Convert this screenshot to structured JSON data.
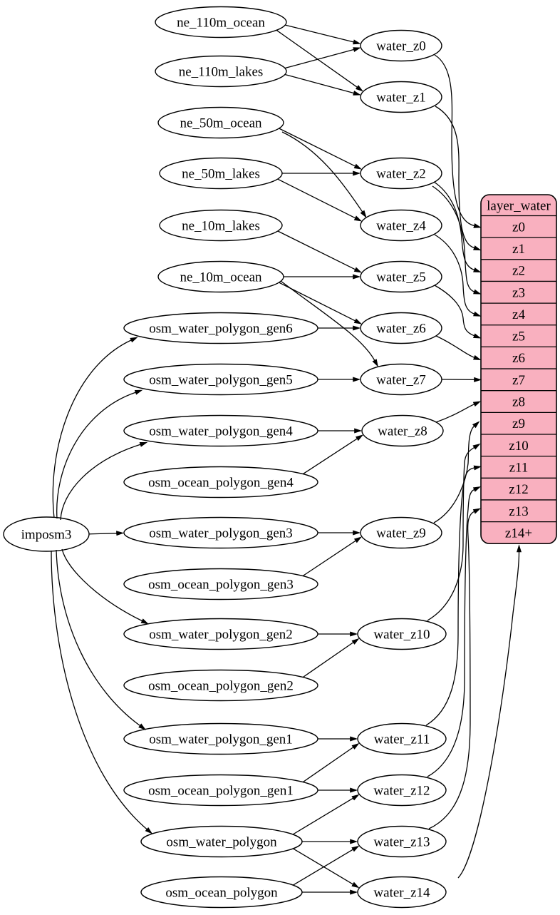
{
  "colors": {
    "background": "#ffffff",
    "node_fill": "#ffffff",
    "stroke": "#000000",
    "record_fill": "#f9b0bf",
    "text": "#000000"
  },
  "nodes": [
    {
      "id": "imposm3",
      "label": "imposm3"
    },
    {
      "id": "ne_110m_ocean",
      "label": "ne_110m_ocean"
    },
    {
      "id": "ne_110m_lakes",
      "label": "ne_110m_lakes"
    },
    {
      "id": "ne_50m_ocean",
      "label": "ne_50m_ocean"
    },
    {
      "id": "ne_50m_lakes",
      "label": "ne_50m_lakes"
    },
    {
      "id": "ne_10m_lakes",
      "label": "ne_10m_lakes"
    },
    {
      "id": "ne_10m_ocean",
      "label": "ne_10m_ocean"
    },
    {
      "id": "osm_water_polygon_gen6",
      "label": "osm_water_polygon_gen6"
    },
    {
      "id": "osm_water_polygon_gen5",
      "label": "osm_water_polygon_gen5"
    },
    {
      "id": "osm_water_polygon_gen4",
      "label": "osm_water_polygon_gen4"
    },
    {
      "id": "osm_ocean_polygon_gen4",
      "label": "osm_ocean_polygon_gen4"
    },
    {
      "id": "osm_water_polygon_gen3",
      "label": "osm_water_polygon_gen3"
    },
    {
      "id": "osm_ocean_polygon_gen3",
      "label": "osm_ocean_polygon_gen3"
    },
    {
      "id": "osm_water_polygon_gen2",
      "label": "osm_water_polygon_gen2"
    },
    {
      "id": "osm_ocean_polygon_gen2",
      "label": "osm_ocean_polygon_gen2"
    },
    {
      "id": "osm_water_polygon_gen1",
      "label": "osm_water_polygon_gen1"
    },
    {
      "id": "osm_ocean_polygon_gen1",
      "label": "osm_ocean_polygon_gen1"
    },
    {
      "id": "osm_water_polygon",
      "label": "osm_water_polygon"
    },
    {
      "id": "osm_ocean_polygon",
      "label": "osm_ocean_polygon"
    },
    {
      "id": "water_z0",
      "label": "water_z0"
    },
    {
      "id": "water_z1",
      "label": "water_z1"
    },
    {
      "id": "water_z2",
      "label": "water_z2"
    },
    {
      "id": "water_z4",
      "label": "water_z4"
    },
    {
      "id": "water_z5",
      "label": "water_z5"
    },
    {
      "id": "water_z6",
      "label": "water_z6"
    },
    {
      "id": "water_z7",
      "label": "water_z7"
    },
    {
      "id": "water_z8",
      "label": "water_z8"
    },
    {
      "id": "water_z9",
      "label": "water_z9"
    },
    {
      "id": "water_z10",
      "label": "water_z10"
    },
    {
      "id": "water_z11",
      "label": "water_z11"
    },
    {
      "id": "water_z12",
      "label": "water_z12"
    },
    {
      "id": "water_z13",
      "label": "water_z13"
    },
    {
      "id": "water_z14",
      "label": "water_z14"
    }
  ],
  "record": {
    "id": "layer_water",
    "header": "layer_water",
    "rows": [
      "z0",
      "z1",
      "z2",
      "z3",
      "z4",
      "z5",
      "z6",
      "z7",
      "z8",
      "z9",
      "z10",
      "z11",
      "z12",
      "z13",
      "z14+"
    ]
  },
  "edges": [
    {
      "from": "imposm3",
      "to": "osm_water_polygon_gen6"
    },
    {
      "from": "imposm3",
      "to": "osm_water_polygon_gen5"
    },
    {
      "from": "imposm3",
      "to": "osm_water_polygon_gen4"
    },
    {
      "from": "imposm3",
      "to": "osm_water_polygon_gen3"
    },
    {
      "from": "imposm3",
      "to": "osm_water_polygon_gen2"
    },
    {
      "from": "imposm3",
      "to": "osm_water_polygon_gen1"
    },
    {
      "from": "imposm3",
      "to": "osm_water_polygon"
    },
    {
      "from": "ne_110m_ocean",
      "to": "water_z0"
    },
    {
      "from": "ne_110m_ocean",
      "to": "water_z1"
    },
    {
      "from": "ne_110m_lakes",
      "to": "water_z0"
    },
    {
      "from": "ne_110m_lakes",
      "to": "water_z1"
    },
    {
      "from": "ne_50m_ocean",
      "to": "water_z2"
    },
    {
      "from": "ne_50m_ocean",
      "to": "water_z4"
    },
    {
      "from": "ne_50m_lakes",
      "to": "water_z2"
    },
    {
      "from": "ne_50m_lakes",
      "to": "water_z4"
    },
    {
      "from": "ne_10m_lakes",
      "to": "water_z5"
    },
    {
      "from": "ne_10m_ocean",
      "to": "water_z5"
    },
    {
      "from": "ne_10m_ocean",
      "to": "water_z6"
    },
    {
      "from": "ne_10m_ocean",
      "to": "water_z7"
    },
    {
      "from": "osm_water_polygon_gen6",
      "to": "water_z6"
    },
    {
      "from": "osm_water_polygon_gen5",
      "to": "water_z7"
    },
    {
      "from": "osm_water_polygon_gen4",
      "to": "water_z8"
    },
    {
      "from": "osm_ocean_polygon_gen4",
      "to": "water_z8"
    },
    {
      "from": "osm_water_polygon_gen3",
      "to": "water_z9"
    },
    {
      "from": "osm_ocean_polygon_gen3",
      "to": "water_z9"
    },
    {
      "from": "osm_water_polygon_gen2",
      "to": "water_z10"
    },
    {
      "from": "osm_ocean_polygon_gen2",
      "to": "water_z10"
    },
    {
      "from": "osm_water_polygon_gen1",
      "to": "water_z11"
    },
    {
      "from": "osm_ocean_polygon_gen1",
      "to": "water_z11"
    },
    {
      "from": "osm_ocean_polygon_gen1",
      "to": "water_z12"
    },
    {
      "from": "osm_water_polygon",
      "to": "water_z12"
    },
    {
      "from": "osm_water_polygon",
      "to": "water_z13"
    },
    {
      "from": "osm_water_polygon",
      "to": "water_z14"
    },
    {
      "from": "osm_ocean_polygon",
      "to": "water_z13"
    },
    {
      "from": "osm_ocean_polygon",
      "to": "water_z14"
    },
    {
      "from": "water_z0",
      "to": "layer_water.z0"
    },
    {
      "from": "water_z1",
      "to": "layer_water.z1"
    },
    {
      "from": "water_z2",
      "to": "layer_water.z2"
    },
    {
      "from": "water_z2",
      "to": "layer_water.z3"
    },
    {
      "from": "water_z4",
      "to": "layer_water.z4"
    },
    {
      "from": "water_z5",
      "to": "layer_water.z5"
    },
    {
      "from": "water_z6",
      "to": "layer_water.z6"
    },
    {
      "from": "water_z7",
      "to": "layer_water.z7"
    },
    {
      "from": "water_z8",
      "to": "layer_water.z8"
    },
    {
      "from": "water_z9",
      "to": "layer_water.z9"
    },
    {
      "from": "water_z10",
      "to": "layer_water.z10"
    },
    {
      "from": "water_z11",
      "to": "layer_water.z11"
    },
    {
      "from": "water_z12",
      "to": "layer_water.z12"
    },
    {
      "from": "water_z13",
      "to": "layer_water.z13"
    },
    {
      "from": "water_z14",
      "to": "layer_water.z14+"
    }
  ]
}
